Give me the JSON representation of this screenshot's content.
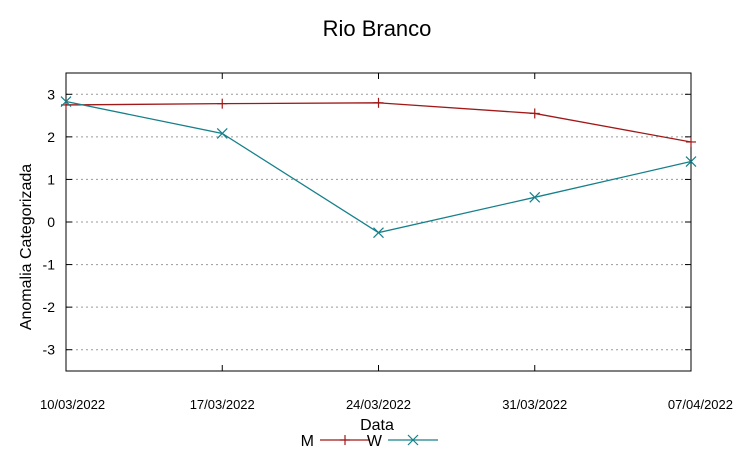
{
  "chart_data": {
    "type": "line",
    "title": "Rio Branco",
    "xlabel": "Data",
    "ylabel": "Anomalia Categorizada",
    "categories": [
      "10/03/2022",
      "17/03/2022",
      "24/03/2022",
      "31/03/2022",
      "07/04/2022"
    ],
    "yticks": [
      "3",
      "2",
      "1",
      "0",
      "-1",
      "-2",
      "-3"
    ],
    "ylim": [
      -3.5,
      3.5
    ],
    "grid": "horizontal dotted",
    "legend_position": "bottom-center",
    "series": [
      {
        "name": "M",
        "color": "#a01818",
        "marker": "plus",
        "values": [
          2.75,
          2.78,
          2.8,
          2.55,
          1.88
        ]
      },
      {
        "name": "W",
        "color": "#16808a",
        "marker": "x",
        "values": [
          2.83,
          2.08,
          -0.25,
          0.58,
          1.42
        ]
      }
    ]
  }
}
